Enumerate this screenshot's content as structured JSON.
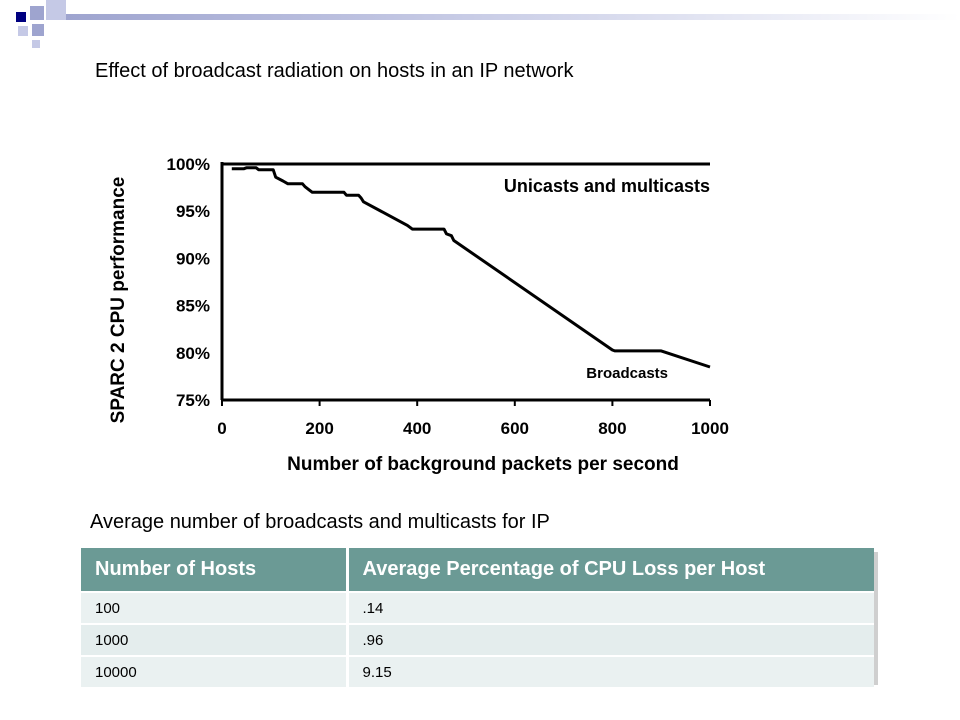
{
  "slide": {
    "title": "Effect of broadcast radiation on hosts in an IP network",
    "table_caption": "Average number of broadcasts and multicasts for IP"
  },
  "colors": {
    "template_navy": "#000080",
    "template_lavender": "#9ea4cf",
    "table_header": "#6b9a95",
    "table_row": "#e4eded"
  },
  "chart_data": {
    "type": "line",
    "xlabel": "Number of background packets per second",
    "ylabel": "SPARC 2 CPU performance",
    "xlim": [
      0,
      1000
    ],
    "ylim": [
      75,
      100
    ],
    "x_ticks": [
      "0",
      "200",
      "400",
      "600",
      "800",
      "1000"
    ],
    "y_ticks": [
      "75%",
      "80%",
      "85%",
      "90%",
      "95%",
      "100%"
    ],
    "grid": false,
    "series": [
      {
        "name": "Unicasts and multicasts",
        "x": [
          0,
          1000
        ],
        "y": [
          100,
          100
        ]
      },
      {
        "name": "Broadcasts",
        "x": [
          20,
          45,
          50,
          70,
          75,
          105,
          110,
          125,
          135,
          165,
          170,
          180,
          185,
          250,
          255,
          280,
          285,
          290,
          380,
          390,
          455,
          460,
          470,
          475,
          800,
          805,
          900,
          1000
        ],
        "y": [
          99.5,
          99.5,
          99.6,
          99.6,
          99.4,
          99.4,
          98.6,
          98.2,
          97.9,
          97.9,
          97.6,
          97.2,
          97.0,
          97.0,
          96.7,
          96.7,
          96.4,
          96.0,
          93.5,
          93.1,
          93.1,
          92.6,
          92.4,
          91.9,
          80.3,
          80.2,
          80.2,
          78.5
        ]
      }
    ]
  },
  "table": {
    "headers": [
      "Number of Hosts",
      "Average Percentage of CPU Loss per Host"
    ],
    "rows": [
      [
        "100",
        ".14"
      ],
      [
        "1000",
        ".96"
      ],
      [
        "10000",
        "9.15"
      ]
    ]
  }
}
